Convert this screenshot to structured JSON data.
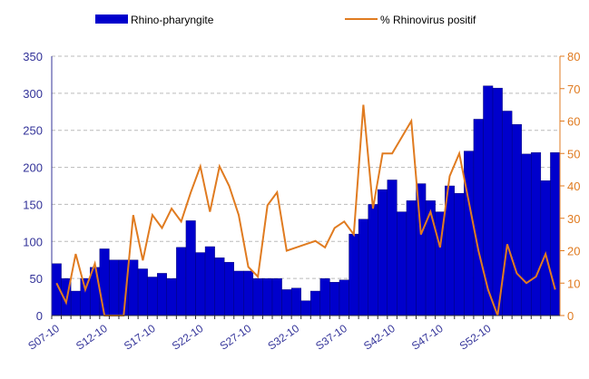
{
  "chart_data": {
    "type": "bar_line",
    "categories": [
      "S07-10",
      null,
      null,
      null,
      null,
      "S12-10",
      null,
      null,
      null,
      null,
      "S17-10",
      null,
      null,
      null,
      null,
      "S22-10",
      null,
      null,
      null,
      null,
      "S27-10",
      null,
      null,
      null,
      null,
      "S32-10",
      null,
      null,
      null,
      null,
      "S37-10",
      null,
      null,
      null,
      null,
      "S42-10",
      null,
      null,
      null,
      null,
      "S47-10",
      null,
      null,
      null,
      null,
      "S52-10",
      null,
      null,
      null,
      null,
      null,
      null,
      null
    ],
    "series": [
      {
        "name": "Rhino-pharyngite",
        "color": "#0000cc",
        "kind": "bar",
        "axis": "y",
        "values": [
          70,
          50,
          33,
          50,
          65,
          90,
          75,
          75,
          75,
          63,
          52,
          57,
          50,
          92,
          128,
          85,
          93,
          78,
          72,
          60,
          60,
          50,
          50,
          50,
          35,
          37,
          20,
          33,
          50,
          45,
          48,
          110,
          130,
          150,
          170,
          183,
          140,
          155,
          178,
          155,
          140,
          175,
          165,
          222,
          265,
          310,
          307,
          276,
          258,
          218,
          220,
          182,
          220
        ]
      },
      {
        "name": "% Rhinovirus positif",
        "color": "#e07b20",
        "kind": "line",
        "axis": "y2",
        "values": [
          10,
          4,
          19,
          8,
          16,
          0,
          0,
          0,
          31,
          17,
          31,
          27,
          33,
          29,
          38,
          46,
          32,
          46,
          40,
          31,
          15,
          12,
          34,
          38,
          20,
          21,
          22,
          23,
          21,
          27,
          29,
          25,
          65,
          33,
          50,
          50,
          55,
          60,
          25,
          32,
          21,
          43,
          50,
          35,
          20,
          8,
          0,
          22,
          13,
          10,
          12,
          19,
          8
        ]
      }
    ],
    "ylim": [
      0,
      350
    ],
    "yticks": [
      0,
      50,
      100,
      150,
      200,
      250,
      300,
      350
    ],
    "y2lim": [
      0,
      80
    ],
    "y2ticks": [
      0,
      10,
      20,
      30,
      40,
      50,
      60,
      70,
      80
    ],
    "grid": true
  }
}
